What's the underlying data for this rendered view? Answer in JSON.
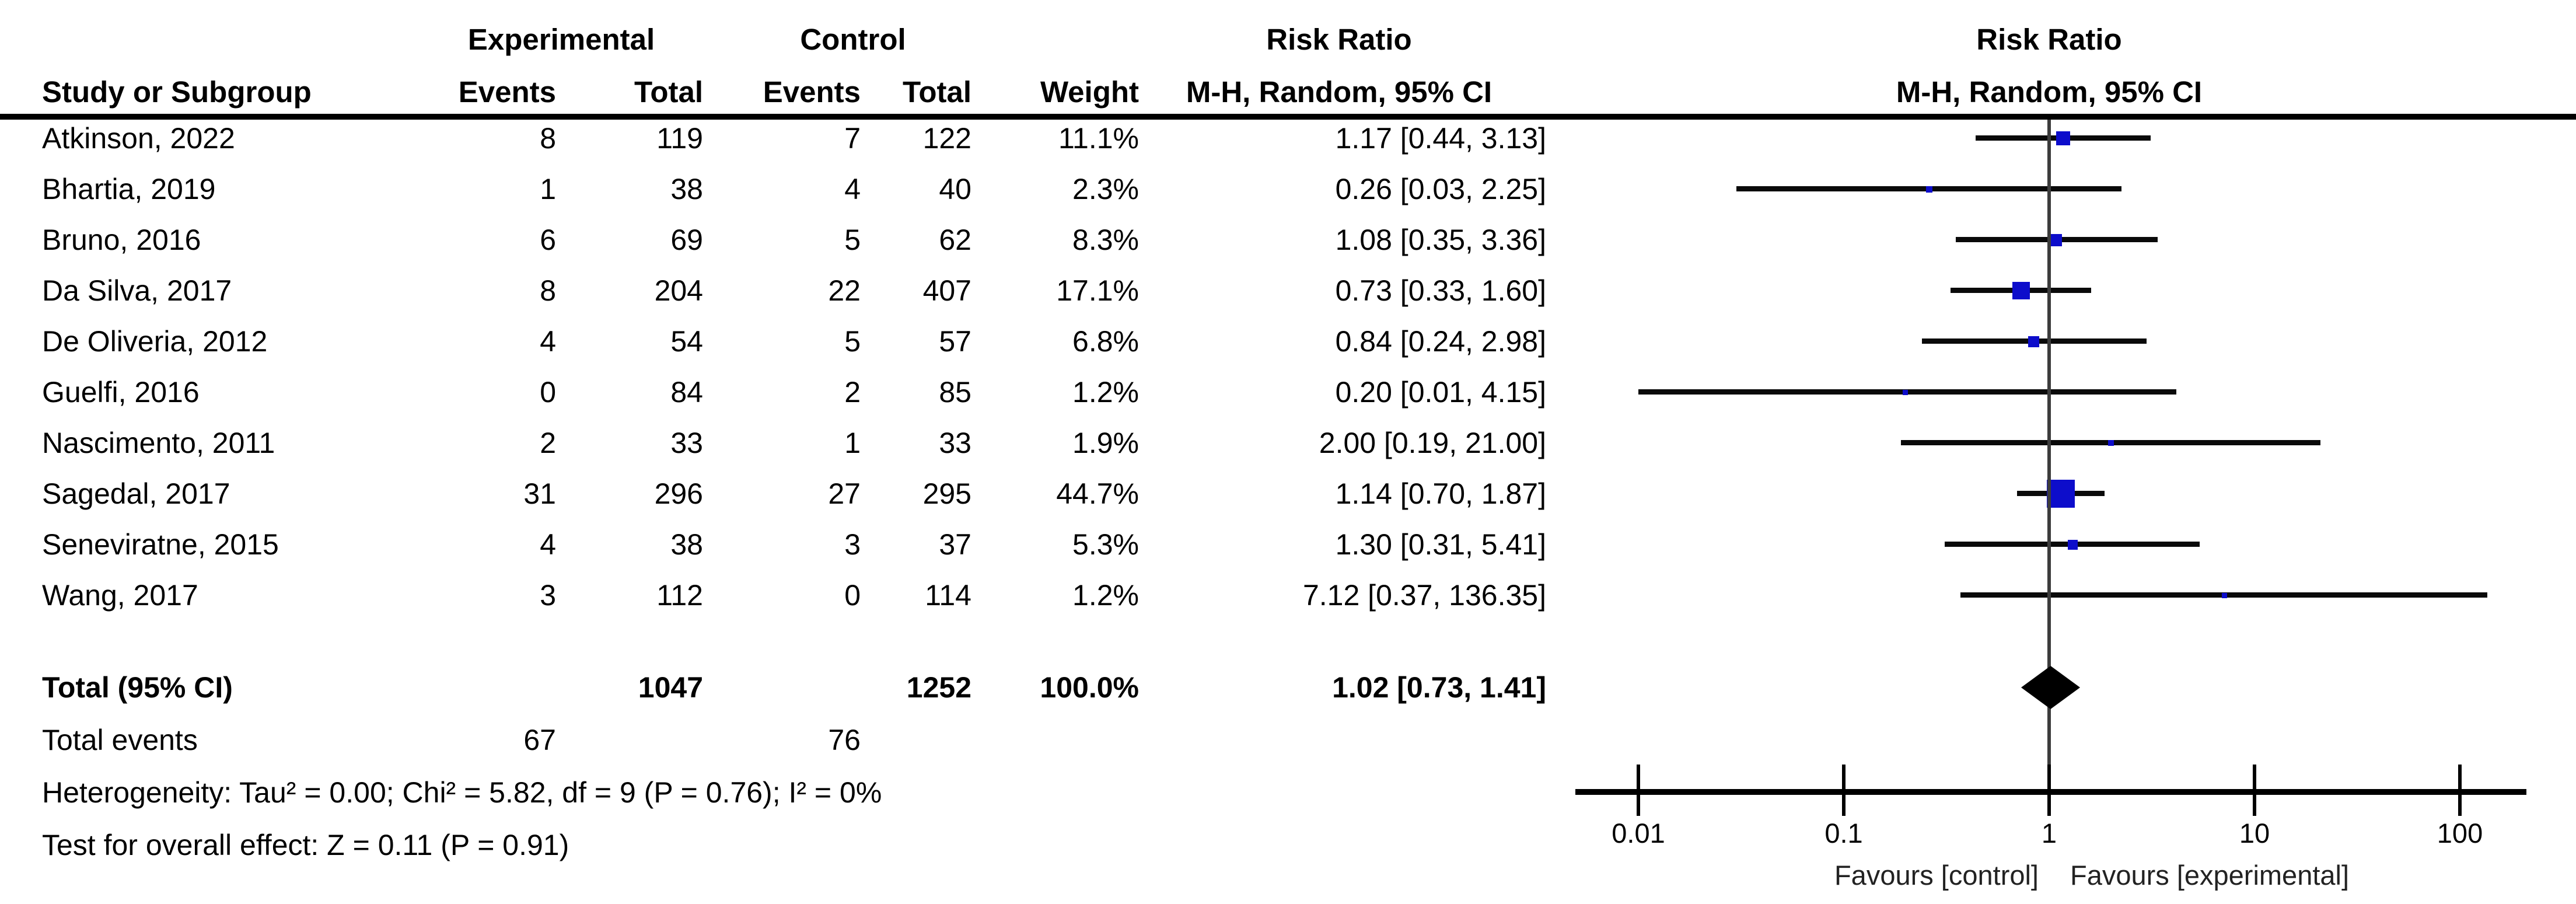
{
  "table": {
    "group_headers": {
      "experimental": "Experimental",
      "control": "Control",
      "risk_ratio_text": "Risk Ratio",
      "risk_ratio_plot": "Risk Ratio"
    },
    "column_headers": {
      "study": "Study or Subgroup",
      "events_experimental": "Events",
      "total_experimental": "Total",
      "events_control": "Events",
      "total_control": "Total",
      "weight": "Weight",
      "mh_random_text": "M-H, Random, 95% CI",
      "mh_random_plot": "M-H, Random, 95% CI"
    }
  },
  "chart_data": {
    "type": "forest",
    "effect_measure": "Risk Ratio",
    "method": "M-H, Random, 95% CI",
    "x_axis": {
      "scale": "log10",
      "ticks": [
        0.01,
        0.1,
        1,
        10,
        100
      ],
      "tick_labels": [
        "0.01",
        "0.1",
        "1",
        "10",
        "100"
      ],
      "favours_left": "Favours [control]",
      "favours_right": "Favours [experimental]"
    },
    "studies": [
      {
        "name": "Atkinson, 2022",
        "events_exp": 8,
        "total_exp": 119,
        "events_ctl": 7,
        "total_ctl": 122,
        "weight": 11.1,
        "weight_label": "11.1%",
        "rr": 1.17,
        "ci_low": 0.44,
        "ci_high": 3.13,
        "ci_label": "1.17 [0.44, 3.13]"
      },
      {
        "name": "Bhartia, 2019",
        "events_exp": 1,
        "total_exp": 38,
        "events_ctl": 4,
        "total_ctl": 40,
        "weight": 2.3,
        "weight_label": "2.3%",
        "rr": 0.26,
        "ci_low": 0.03,
        "ci_high": 2.25,
        "ci_label": "0.26 [0.03, 2.25]"
      },
      {
        "name": "Bruno, 2016",
        "events_exp": 6,
        "total_exp": 69,
        "events_ctl": 5,
        "total_ctl": 62,
        "weight": 8.3,
        "weight_label": "8.3%",
        "rr": 1.08,
        "ci_low": 0.35,
        "ci_high": 3.36,
        "ci_label": "1.08 [0.35, 3.36]"
      },
      {
        "name": "Da Silva, 2017",
        "events_exp": 8,
        "total_exp": 204,
        "events_ctl": 22,
        "total_ctl": 407,
        "weight": 17.1,
        "weight_label": "17.1%",
        "rr": 0.73,
        "ci_low": 0.33,
        "ci_high": 1.6,
        "ci_label": "0.73 [0.33, 1.60]"
      },
      {
        "name": "De Oliveria, 2012",
        "events_exp": 4,
        "total_exp": 54,
        "events_ctl": 5,
        "total_ctl": 57,
        "weight": 6.8,
        "weight_label": "6.8%",
        "rr": 0.84,
        "ci_low": 0.24,
        "ci_high": 2.98,
        "ci_label": "0.84 [0.24, 2.98]"
      },
      {
        "name": "Guelfi, 2016",
        "events_exp": 0,
        "total_exp": 84,
        "events_ctl": 2,
        "total_ctl": 85,
        "weight": 1.2,
        "weight_label": "1.2%",
        "rr": 0.2,
        "ci_low": 0.01,
        "ci_high": 4.15,
        "ci_label": "0.20 [0.01, 4.15]"
      },
      {
        "name": "Nascimento, 2011",
        "events_exp": 2,
        "total_exp": 33,
        "events_ctl": 1,
        "total_ctl": 33,
        "weight": 1.9,
        "weight_label": "1.9%",
        "rr": 2.0,
        "ci_low": 0.19,
        "ci_high": 21.0,
        "ci_label": "2.00 [0.19, 21.00]"
      },
      {
        "name": "Sagedal, 2017",
        "events_exp": 31,
        "total_exp": 296,
        "events_ctl": 27,
        "total_ctl": 295,
        "weight": 44.7,
        "weight_label": "44.7%",
        "rr": 1.14,
        "ci_low": 0.7,
        "ci_high": 1.87,
        "ci_label": "1.14 [0.70, 1.87]"
      },
      {
        "name": "Seneviratne, 2015",
        "events_exp": 4,
        "total_exp": 38,
        "events_ctl": 3,
        "total_ctl": 37,
        "weight": 5.3,
        "weight_label": "5.3%",
        "rr": 1.3,
        "ci_low": 0.31,
        "ci_high": 5.41,
        "ci_label": "1.30 [0.31, 5.41]"
      },
      {
        "name": "Wang, 2017",
        "events_exp": 3,
        "total_exp": 112,
        "events_ctl": 0,
        "total_ctl": 114,
        "weight": 1.2,
        "weight_label": "1.2%",
        "rr": 7.12,
        "ci_low": 0.37,
        "ci_high": 136.35,
        "ci_label": "7.12 [0.37, 136.35]"
      }
    ],
    "total": {
      "label": "Total (95% CI)",
      "total_exp": "1047",
      "total_ctl": "1252",
      "weight_label": "100.0%",
      "rr": 1.02,
      "ci_low": 0.73,
      "ci_high": 1.41,
      "ci_label": "1.02 [0.73, 1.41]"
    },
    "total_events": {
      "label": "Total events",
      "exp": "67",
      "ctl": "76"
    },
    "heterogeneity": "Heterogeneity: Tau² = 0.00; Chi² = 5.82, df = 9 (P = 0.76); I² = 0%",
    "overall_effect": "Test for overall effect: Z = 0.11 (P = 0.91)",
    "colors": {
      "marker_blue": "#0d0dcb",
      "diamond_black": "#000000",
      "ci_line": "#0a0a0a",
      "center_line": "#3c3c3c"
    }
  }
}
